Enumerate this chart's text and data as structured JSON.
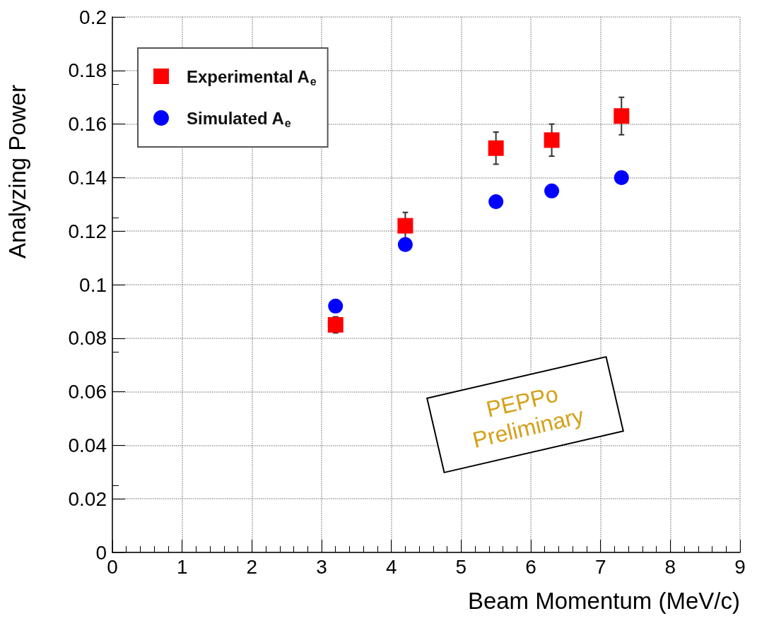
{
  "chart_data": {
    "type": "scatter",
    "xlabel": "Beam Momentum (MeV/c)",
    "ylabel": "Analyzing Power",
    "xlim": [
      0,
      9
    ],
    "xticks": [
      0,
      1,
      2,
      3,
      4,
      5,
      6,
      7,
      8,
      9
    ],
    "ylim": [
      0,
      0.2
    ],
    "yticks": [
      0,
      0.02,
      0.04,
      0.06,
      0.08,
      0.1,
      0.12,
      0.14,
      0.16,
      0.18,
      0.2
    ],
    "grid": true,
    "legend": "top left",
    "annotations": [
      "PEPPo Preliminary"
    ],
    "series": [
      {
        "name": "Experimental A$_{e}$",
        "color": "#ff0000",
        "marker": "square",
        "x": [
          3.2,
          4.2,
          5.5,
          6.3,
          7.3
        ],
        "values": [
          0.085,
          0.122,
          0.151,
          0.154,
          0.163
        ],
        "errors": [
          0.003,
          0.005,
          0.006,
          0.006,
          0.007
        ]
      },
      {
        "name": "Simulated A$_{e}$",
        "color": "#0000ff",
        "marker": "circle",
        "x": [
          3.2,
          4.2,
          5.5,
          6.3,
          7.3
        ],
        "values": [
          0.092,
          0.115,
          0.131,
          0.135,
          0.14
        ]
      }
    ]
  }
}
